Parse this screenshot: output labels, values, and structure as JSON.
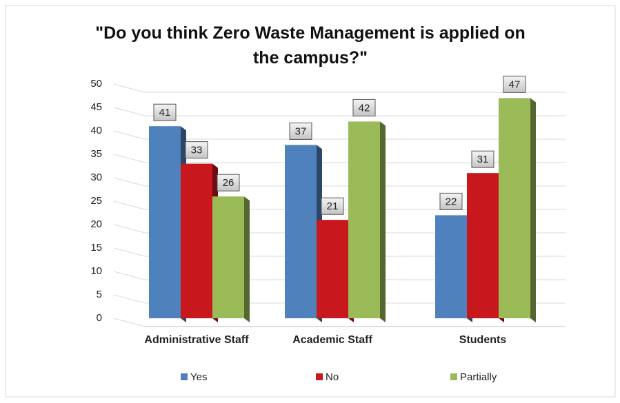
{
  "chart_data": {
    "type": "bar",
    "title": "\"Do you think Zero Waste Management is applied on the campus?\"",
    "categories": [
      "Administrative Staff",
      "Academic Staff",
      "Students"
    ],
    "series": [
      {
        "name": "Yes",
        "color": "#4f81bd",
        "values": [
          41,
          37,
          22
        ]
      },
      {
        "name": "No",
        "color": "#c8171d",
        "values": [
          33,
          21,
          31
        ]
      },
      {
        "name": "Partially",
        "color": "#9bbb59",
        "values": [
          26,
          42,
          47
        ]
      }
    ],
    "ylim": [
      0,
      50
    ],
    "yticks": [
      0,
      5,
      10,
      15,
      20,
      25,
      30,
      35,
      40,
      45,
      50
    ],
    "grid": true,
    "legend": "bottom",
    "data_labels": true
  }
}
